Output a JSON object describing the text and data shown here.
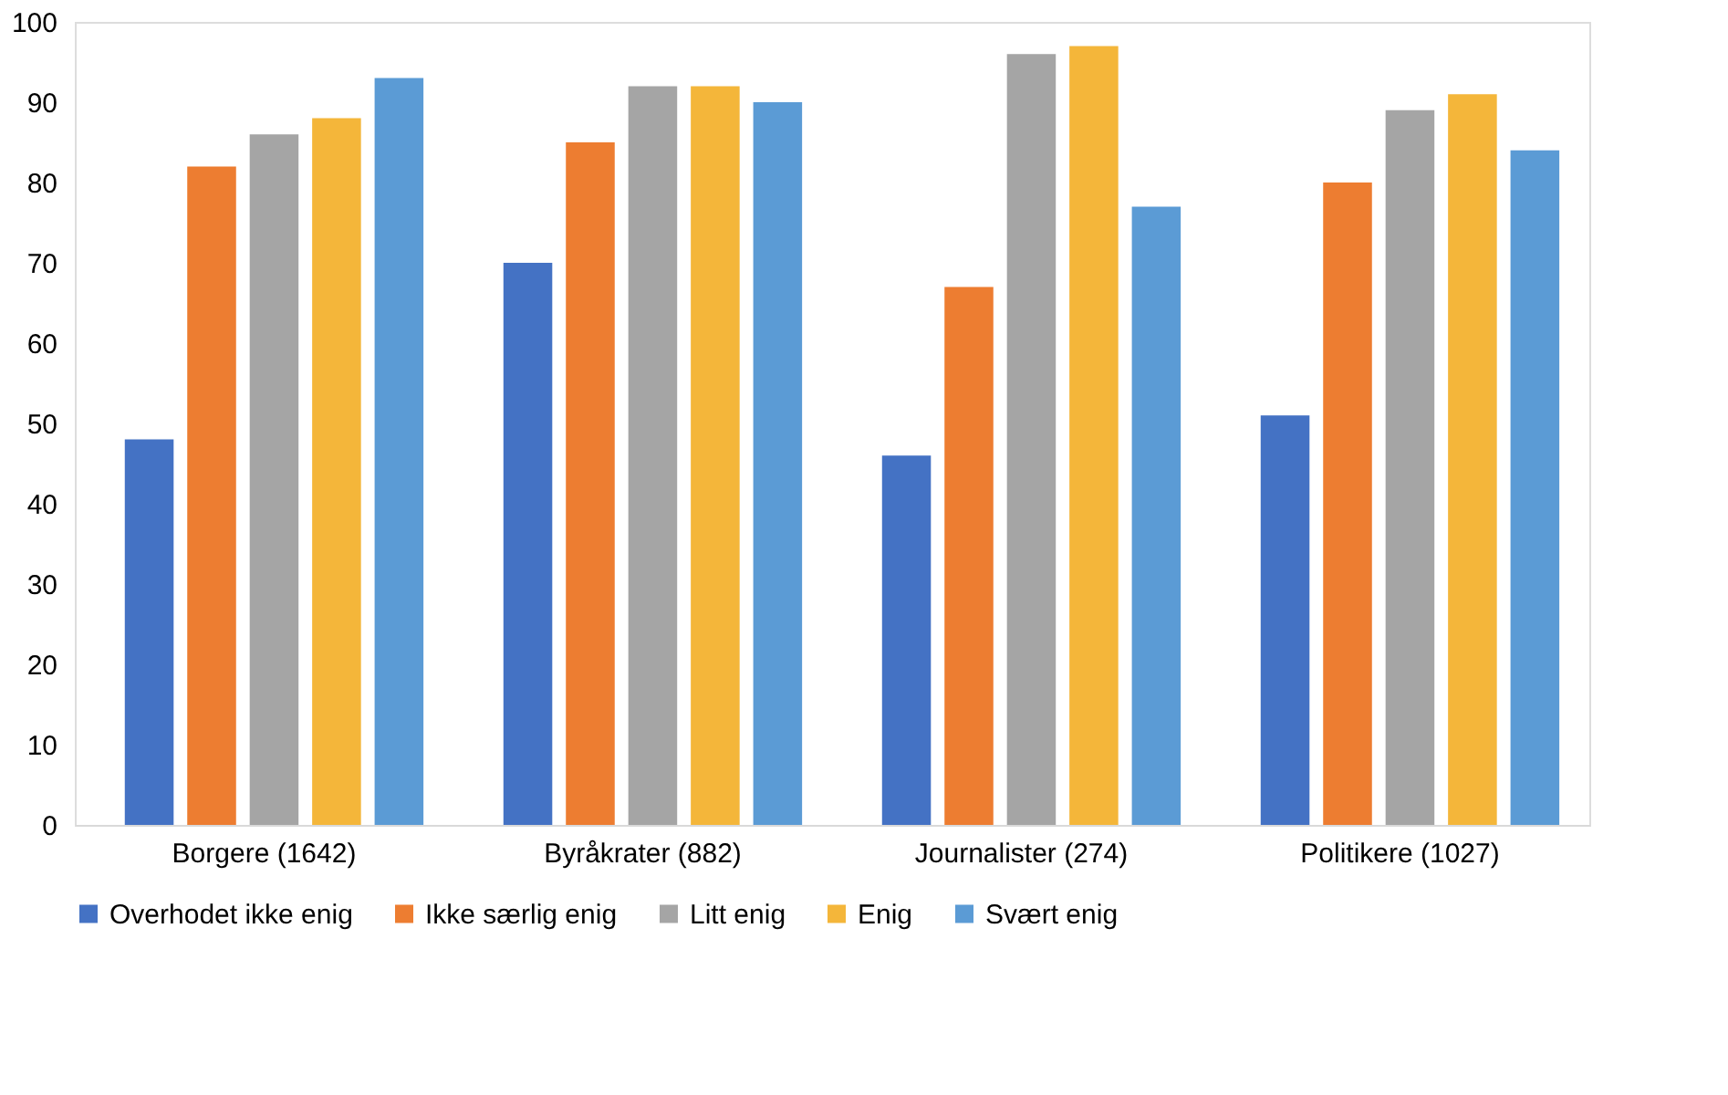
{
  "chart_data": {
    "type": "bar",
    "categories": [
      "Borgere (1642)",
      "Byråkrater (882)",
      "Journalister (274)",
      "Politikere (1027)"
    ],
    "series": [
      {
        "name": "Overhodet ikke enig",
        "color": "#4472c4",
        "values": [
          48,
          70,
          46,
          51
        ]
      },
      {
        "name": "Ikke særlig enig",
        "color": "#ed7d31",
        "values": [
          82,
          85,
          67,
          80
        ]
      },
      {
        "name": "Litt enig",
        "color": "#a5a5a5",
        "values": [
          86,
          92,
          96,
          89
        ]
      },
      {
        "name": "Enig",
        "color": "#f4b63a",
        "values": [
          88,
          92,
          97,
          91
        ]
      },
      {
        "name": "Svært enig",
        "color": "#5b9bd5",
        "values": [
          93,
          90,
          77,
          84
        ]
      }
    ],
    "ylim": [
      0,
      100
    ],
    "yticks": [
      0,
      10,
      20,
      30,
      40,
      50,
      60,
      70,
      80,
      90,
      100
    ],
    "grid": false,
    "legend": "bottom"
  }
}
